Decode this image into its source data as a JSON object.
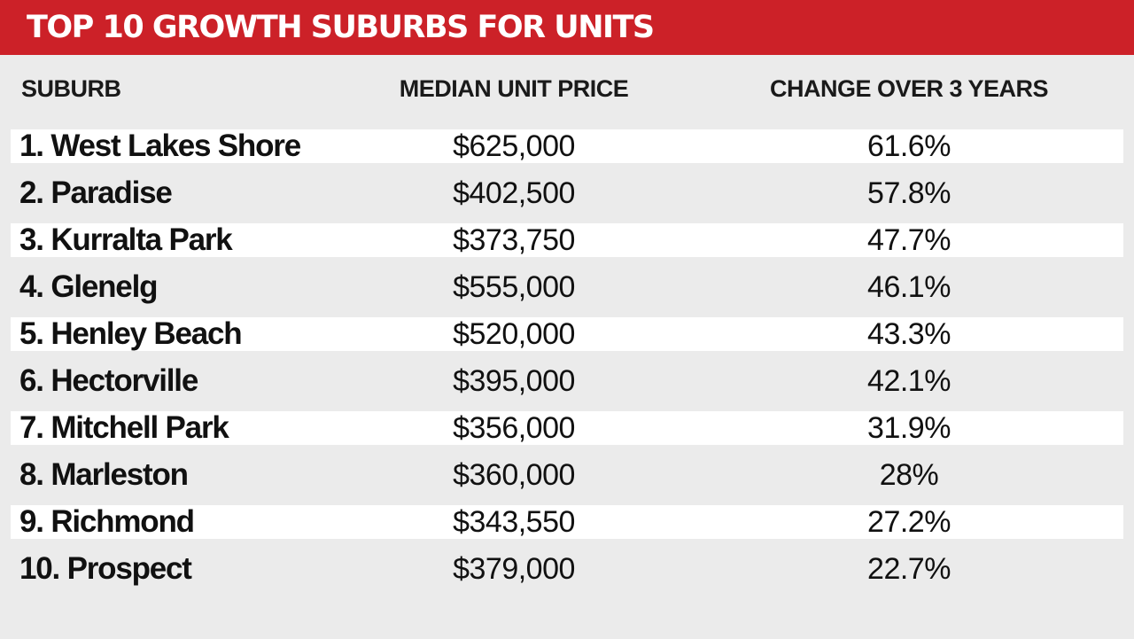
{
  "chart_data": {
    "type": "table",
    "title": "TOP 10 GROWTH SUBURBS FOR UNITS",
    "columns": [
      "SUBURB",
      "MEDIAN UNIT PRICE",
      "CHANGE OVER 3 YEARS"
    ],
    "rows": [
      {
        "suburb": "1. West Lakes Shore",
        "price": "$625,000",
        "change": "61.6%"
      },
      {
        "suburb": "2. Paradise",
        "price": "$402,500",
        "change": "57.8%"
      },
      {
        "suburb": "3. Kurralta Park",
        "price": "$373,750",
        "change": "47.7%"
      },
      {
        "suburb": "4. Glenelg",
        "price": "$555,000",
        "change": "46.1%"
      },
      {
        "suburb": "5. Henley Beach",
        "price": "$520,000",
        "change": "43.3%"
      },
      {
        "suburb": "6. Hectorville",
        "price": "$395,000",
        "change": "42.1%"
      },
      {
        "suburb": "7. Mitchell Park",
        "price": "$356,000",
        "change": "31.9%"
      },
      {
        "suburb": "8. Marleston",
        "price": "$360,000",
        "change": "28%"
      },
      {
        "suburb": "9. Richmond",
        "price": "$343,550",
        "change": "27.2%"
      },
      {
        "suburb": "10. Prospect",
        "price": "$379,000",
        "change": "22.7%"
      }
    ]
  },
  "colors": {
    "banner": "#cc2128",
    "background": "#ebebeb",
    "row_stripe": "#ffffff",
    "text": "#111111"
  }
}
